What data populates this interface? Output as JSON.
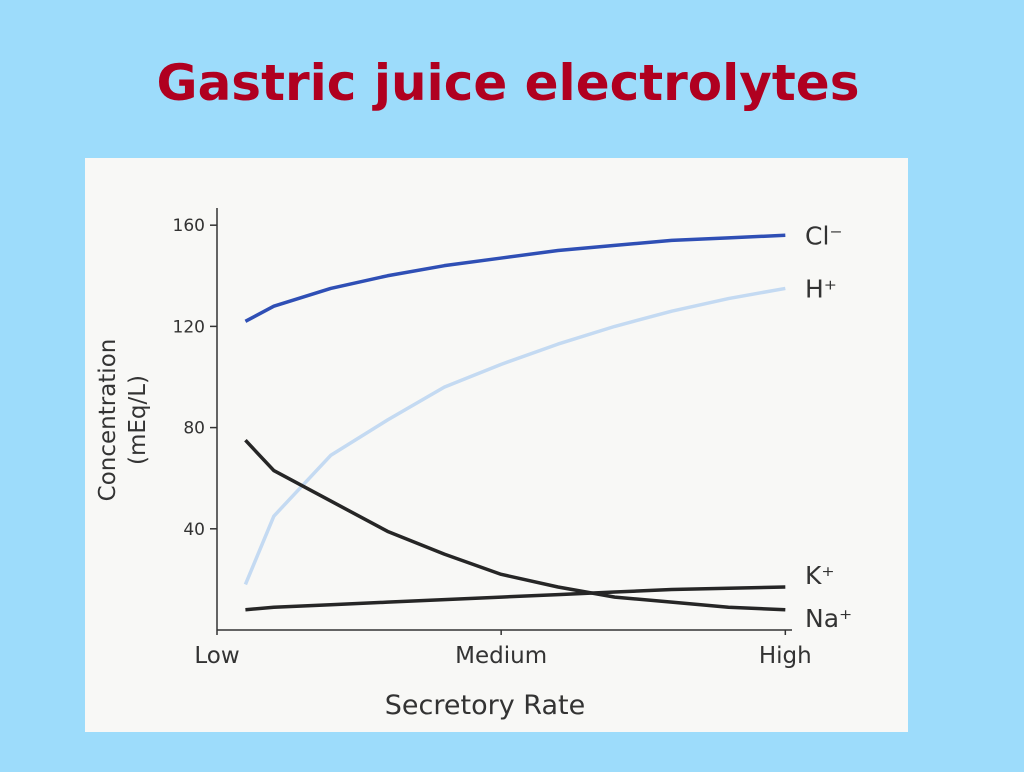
{
  "chart_data": {
    "type": "line",
    "title": "Gastric juice electrolytes",
    "xlabel": "Secretory Rate",
    "ylabel": [
      "Concentration",
      "(mEq/L)"
    ],
    "x": [
      0.05,
      0.1,
      0.2,
      0.3,
      0.4,
      0.5,
      0.6,
      0.7,
      0.8,
      0.9,
      1.0
    ],
    "xlim": [
      0,
      1.01
    ],
    "xticks": [
      {
        "value": 0,
        "label": "Low"
      },
      {
        "value": 0.5,
        "label": "Medium"
      },
      {
        "value": 1.0,
        "label": "High"
      }
    ],
    "ylim": [
      0,
      166
    ],
    "yticks": [
      40,
      80,
      120,
      160
    ],
    "series": [
      {
        "name": "Cl⁻",
        "color": "#2f4fb5",
        "values": [
          122,
          128,
          135,
          140,
          144,
          147,
          150,
          152,
          154,
          155,
          156
        ]
      },
      {
        "name": "H⁺",
        "color": "#c4daf2",
        "values": [
          18,
          45,
          69,
          83,
          96,
          105,
          113,
          120,
          126,
          131,
          135
        ]
      },
      {
        "name": "K⁺",
        "color": "#262626",
        "values": [
          8,
          9,
          10,
          11,
          12,
          13,
          14,
          15,
          16,
          16.5,
          17
        ]
      },
      {
        "name": "Na⁺",
        "color": "#262626",
        "values": [
          75,
          63,
          51,
          39,
          30,
          22,
          17,
          13,
          11,
          9,
          8
        ]
      }
    ]
  }
}
